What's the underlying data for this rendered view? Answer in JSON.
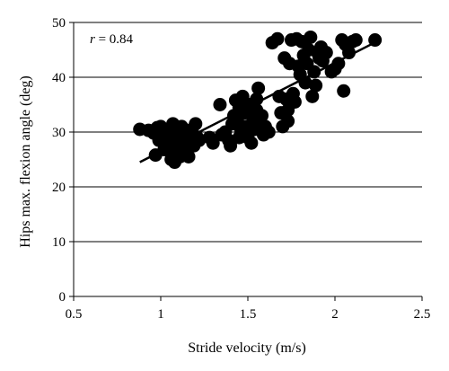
{
  "chart_data": {
    "type": "scatter",
    "title": "",
    "xlabel": "Stride velocity (m/s)",
    "ylabel": "Hips max. flexion angle (deg)",
    "xlim": [
      0.5,
      2.5
    ],
    "ylim": [
      0,
      50
    ],
    "xticks": [
      "0.5",
      "1",
      "1.5",
      "2",
      "2.5"
    ],
    "yticks": [
      "0",
      "10",
      "20",
      "30",
      "40",
      "50"
    ],
    "grid": "horizontal",
    "annotation": {
      "italic": "r",
      "text": " = 0.84"
    },
    "regression_line": {
      "x": [
        0.88,
        2.22
      ],
      "y": [
        24.5,
        46.2
      ]
    },
    "colors": {
      "marker": "#000000",
      "grid": "#000000"
    },
    "series": [
      {
        "points": [
          [
            0.88,
            30.5
          ],
          [
            0.93,
            30.3
          ],
          [
            0.96,
            29.8
          ],
          [
            0.98,
            30.8
          ],
          [
            0.99,
            28.5
          ],
          [
            1.0,
            31.0
          ],
          [
            1.01,
            29.0
          ],
          [
            1.02,
            30.2
          ],
          [
            1.03,
            28.0
          ],
          [
            1.04,
            27.5
          ],
          [
            1.05,
            29.5
          ],
          [
            1.05,
            26.5
          ],
          [
            1.06,
            25.0
          ],
          [
            1.06,
            28.5
          ],
          [
            1.07,
            31.5
          ],
          [
            1.07,
            30.0
          ],
          [
            1.08,
            24.5
          ],
          [
            1.08,
            27.0
          ],
          [
            1.09,
            29.0
          ],
          [
            1.09,
            26.0
          ],
          [
            1.1,
            30.5
          ],
          [
            1.1,
            28.0
          ],
          [
            1.11,
            25.5
          ],
          [
            1.11,
            27.5
          ],
          [
            1.12,
            29.5
          ],
          [
            1.12,
            31.0
          ],
          [
            1.13,
            26.5
          ],
          [
            1.13,
            28.5
          ],
          [
            1.14,
            30.0
          ],
          [
            1.15,
            27.0
          ],
          [
            1.15,
            29.0
          ],
          [
            1.16,
            25.5
          ],
          [
            1.17,
            28.0
          ],
          [
            1.18,
            30.5
          ],
          [
            1.19,
            27.5
          ],
          [
            1.2,
            31.5
          ],
          [
            1.21,
            29.0
          ],
          [
            1.22,
            28.5
          ],
          [
            0.97,
            25.8
          ],
          [
            1.02,
            26.8
          ],
          [
            1.28,
            29.0
          ],
          [
            1.3,
            28.0
          ],
          [
            1.34,
            35.0
          ],
          [
            1.37,
            30.0
          ],
          [
            1.39,
            28.5
          ],
          [
            1.4,
            27.5
          ],
          [
            1.41,
            31.5
          ],
          [
            1.42,
            33.0
          ],
          [
            1.44,
            32.0
          ],
          [
            1.45,
            34.5
          ],
          [
            1.46,
            30.5
          ],
          [
            1.47,
            36.5
          ],
          [
            1.48,
            33.5
          ],
          [
            1.49,
            31.0
          ],
          [
            1.5,
            29.0
          ],
          [
            1.51,
            35.0
          ],
          [
            1.52,
            28.0
          ],
          [
            1.53,
            32.5
          ],
          [
            1.54,
            30.5
          ],
          [
            1.55,
            34.0
          ],
          [
            1.56,
            38.0
          ],
          [
            1.57,
            31.5
          ],
          [
            1.58,
            33.0
          ],
          [
            1.59,
            29.5
          ],
          [
            1.6,
            31.0
          ],
          [
            1.45,
            29.0
          ],
          [
            1.43,
            35.8
          ],
          [
            1.35,
            29.5
          ],
          [
            1.55,
            36.0
          ],
          [
            1.62,
            30.0
          ],
          [
            1.64,
            46.3
          ],
          [
            1.67,
            47.0
          ],
          [
            1.68,
            36.5
          ],
          [
            1.69,
            33.5
          ],
          [
            1.7,
            31.0
          ],
          [
            1.71,
            43.5
          ],
          [
            1.72,
            36.0
          ],
          [
            1.73,
            34.0
          ],
          [
            1.74,
            42.5
          ],
          [
            1.75,
            46.8
          ],
          [
            1.76,
            37.0
          ],
          [
            1.77,
            35.5
          ],
          [
            1.78,
            47.0
          ],
          [
            1.79,
            42.0
          ],
          [
            1.8,
            40.5
          ],
          [
            1.81,
            46.5
          ],
          [
            1.82,
            44.0
          ],
          [
            1.83,
            39.0
          ],
          [
            1.84,
            42.5
          ],
          [
            1.85,
            45.0
          ],
          [
            1.86,
            47.3
          ],
          [
            1.87,
            36.5
          ],
          [
            1.88,
            41.0
          ],
          [
            1.89,
            38.5
          ],
          [
            1.9,
            44.5
          ],
          [
            1.91,
            43.5
          ],
          [
            1.92,
            45.5
          ],
          [
            1.93,
            43.0
          ],
          [
            1.95,
            44.5
          ],
          [
            1.98,
            41.0
          ],
          [
            2.0,
            41.5
          ],
          [
            2.02,
            42.5
          ],
          [
            2.04,
            46.8
          ],
          [
            2.05,
            37.5
          ],
          [
            2.06,
            46.0
          ],
          [
            2.08,
            44.5
          ],
          [
            2.1,
            46.5
          ],
          [
            2.12,
            46.8
          ],
          [
            2.23,
            46.8
          ],
          [
            1.73,
            32.0
          ]
        ]
      }
    ]
  }
}
